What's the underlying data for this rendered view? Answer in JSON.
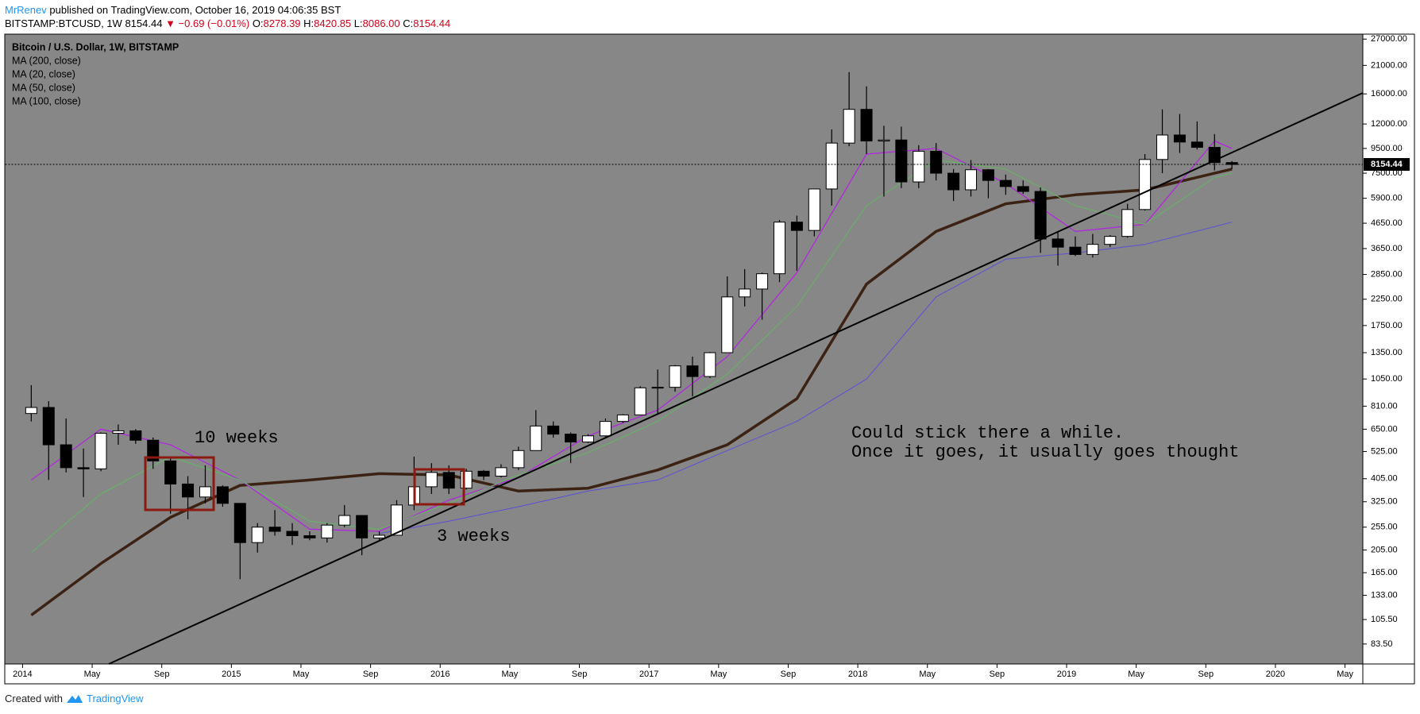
{
  "header": {
    "author": "MrRenev",
    "published": "published on TradingView.com, October 16, 2019 04:06:35 BST",
    "symbol": "BITSTAMP:BTCUSD, 1W",
    "price": "8154.44",
    "change": "▼ −0.69 (−0.01%)",
    "ohlc": [
      {
        "label": "O:",
        "value": "8278.39"
      },
      {
        "label": "H:",
        "value": "8420.85"
      },
      {
        "label": "L:",
        "value": "8086.00"
      },
      {
        "label": "C:",
        "value": "8154.44"
      }
    ]
  },
  "footer": {
    "text": "Created with",
    "brand": "TradingView"
  },
  "chart_data": {
    "type": "candlestick",
    "title": "Bitcoin / U.S. Dollar, 1W, BITSTAMP",
    "log_scale": true,
    "up_color": "#ffffff",
    "down_color": "#000000",
    "x": [
      "2014-01",
      "2014-02",
      "2014-03",
      "2014-04",
      "2014-05",
      "2014-06",
      "2014-07",
      "2014-08",
      "2014-09",
      "2014-10",
      "2014-11",
      "2014-12",
      "2015-01",
      "2015-02",
      "2015-03",
      "2015-04",
      "2015-05",
      "2015-06",
      "2015-07",
      "2015-08",
      "2015-09",
      "2015-10",
      "2015-11",
      "2015-12",
      "2016-01",
      "2016-02",
      "2016-03",
      "2016-04",
      "2016-05",
      "2016-06",
      "2016-07",
      "2016-08",
      "2016-09",
      "2016-10",
      "2016-11",
      "2016-12",
      "2017-01",
      "2017-02",
      "2017-03",
      "2017-04",
      "2017-05",
      "2017-06",
      "2017-07",
      "2017-08",
      "2017-09",
      "2017-10",
      "2017-11",
      "2017-12",
      "2018-01",
      "2018-02",
      "2018-03",
      "2018-04",
      "2018-05",
      "2018-06",
      "2018-07",
      "2018-08",
      "2018-09",
      "2018-10",
      "2018-11",
      "2018-12",
      "2019-01",
      "2019-02",
      "2019-03",
      "2019-04",
      "2019-05",
      "2019-06",
      "2019-07",
      "2019-08",
      "2019-09",
      "2019-10"
    ],
    "open": [
      755,
      800,
      560,
      450,
      445,
      625,
      640,
      585,
      480,
      385,
      340,
      375,
      320,
      220,
      255,
      245,
      235,
      230,
      260,
      285,
      230,
      236,
      315,
      375,
      430,
      370,
      435,
      415,
      450,
      530,
      670,
      620,
      575,
      610,
      700,
      745,
      965,
      970,
      1190,
      1075,
      1350,
      2300,
      2480,
      2870,
      4700,
      4340,
      6450,
      10000,
      13800,
      10200,
      10300,
      6900,
      9250,
      7500,
      6400,
      7750,
      7000,
      6600,
      6300,
      4000,
      3700,
      3450,
      3800,
      4100,
      5300,
      8550,
      10800,
      10100,
      9600,
      8300
    ],
    "high": [
      990,
      850,
      720,
      540,
      630,
      680,
      650,
      600,
      490,
      415,
      460,
      380,
      320,
      265,
      300,
      265,
      245,
      265,
      315,
      285,
      245,
      330,
      500,
      470,
      460,
      445,
      440,
      465,
      550,
      780,
      700,
      630,
      620,
      720,
      750,
      980,
      1150,
      1200,
      1300,
      1360,
      2800,
      3000,
      2900,
      4800,
      5000,
      6450,
      11400,
      19700,
      17200,
      11800,
      11700,
      9800,
      10000,
      7800,
      8500,
      7800,
      7400,
      7000,
      6550,
      4250,
      4100,
      4200,
      4150,
      5600,
      9000,
      13800,
      13200,
      12300,
      10900,
      8420.85
    ],
    "low": [
      700,
      400,
      430,
      340,
      435,
      560,
      565,
      445,
      290,
      275,
      320,
      310,
      155,
      200,
      235,
      215,
      225,
      220,
      255,
      195,
      225,
      236,
      300,
      350,
      350,
      365,
      400,
      410,
      440,
      530,
      600,
      470,
      570,
      605,
      690,
      745,
      750,
      930,
      890,
      1060,
      1350,
      2100,
      1850,
      2650,
      2950,
      4100,
      5500,
      9700,
      9000,
      6000,
      6500,
      6500,
      7000,
      5750,
      6000,
      5900,
      6100,
      6150,
      3500,
      3100,
      3400,
      3350,
      3700,
      4050,
      5250,
      7500,
      9100,
      9400,
      7700,
      7800
    ],
    "close": [
      800,
      560,
      450,
      445,
      625,
      640,
      585,
      480,
      385,
      340,
      375,
      320,
      220,
      255,
      245,
      235,
      230,
      260,
      285,
      230,
      236,
      315,
      375,
      430,
      370,
      435,
      415,
      450,
      530,
      670,
      620,
      575,
      610,
      700,
      745,
      965,
      970,
      1190,
      1075,
      1350,
      2300,
      2480,
      2870,
      4700,
      4340,
      6450,
      10000,
      13800,
      10200,
      10300,
      6900,
      9250,
      7500,
      6400,
      7750,
      7000,
      6600,
      6300,
      4000,
      3700,
      3450,
      3800,
      4100,
      5300,
      8550,
      10800,
      10100,
      9600,
      8300,
      8154.44
    ],
    "last_price": 8154.44,
    "ma_x": [
      "2014-01",
      "2014-05",
      "2014-09",
      "2015-01",
      "2015-05",
      "2015-09",
      "2016-01",
      "2016-05",
      "2016-09",
      "2017-01",
      "2017-05",
      "2017-09",
      "2018-01",
      "2018-05",
      "2018-09",
      "2019-01",
      "2019-05",
      "2019-09",
      "2019-10"
    ],
    "ma": [
      {
        "name": "MA (200, close)",
        "color": "#3b2212",
        "width": 3.5,
        "values": [
          110,
          180,
          280,
          380,
          400,
          425,
          420,
          360,
          370,
          440,
          560,
          870,
          2600,
          4300,
          5600,
          6100,
          6400,
          7500,
          7800
        ]
      },
      {
        "name": "MA (20, close)",
        "color": "#b326e0",
        "width": 1.3,
        "values": [
          400,
          650,
          560,
          400,
          250,
          245,
          330,
          410,
          610,
          780,
          1300,
          2900,
          9000,
          9500,
          6800,
          4300,
          4600,
          10200,
          9500
        ]
      },
      {
        "name": "MA (50, close)",
        "color": "#62b862",
        "width": 1,
        "values": [
          200,
          350,
          500,
          400,
          270,
          250,
          320,
          420,
          520,
          700,
          1100,
          2100,
          5500,
          8500,
          7800,
          5500,
          4600,
          7200,
          7500
        ]
      },
      {
        "name": "MA (100, close)",
        "color": "#5a4fd8",
        "width": 1,
        "values": [
          null,
          null,
          null,
          null,
          null,
          240,
          270,
          310,
          360,
          400,
          530,
          700,
          1050,
          2300,
          3300,
          3500,
          3800,
          4500,
          4700
        ]
      }
    ],
    "xlim": [
      "2013-12",
      "2020-06"
    ],
    "xticks": [
      {
        "value": "2014-01",
        "label": "2014"
      },
      {
        "value": "2014-05",
        "label": "May"
      },
      {
        "value": "2014-09",
        "label": "Sep"
      },
      {
        "value": "2015-01",
        "label": "2015"
      },
      {
        "value": "2015-05",
        "label": "May"
      },
      {
        "value": "2015-09",
        "label": "Sep"
      },
      {
        "value": "2016-01",
        "label": "2016"
      },
      {
        "value": "2016-05",
        "label": "May"
      },
      {
        "value": "2016-09",
        "label": "Sep"
      },
      {
        "value": "2017-01",
        "label": "2017"
      },
      {
        "value": "2017-05",
        "label": "May"
      },
      {
        "value": "2017-09",
        "label": "Sep"
      },
      {
        "value": "2018-01",
        "label": "2018"
      },
      {
        "value": "2018-05",
        "label": "May"
      },
      {
        "value": "2018-09",
        "label": "Sep"
      },
      {
        "value": "2019-01",
        "label": "2019"
      },
      {
        "value": "2019-05",
        "label": "May"
      },
      {
        "value": "2019-09",
        "label": "Sep"
      },
      {
        "value": "2020-01",
        "label": "2020"
      },
      {
        "value": "2020-05",
        "label": "May"
      }
    ],
    "ylim": [
      69,
      28200
    ],
    "yticks": [
      {
        "value": 83.5,
        "label": "83.50"
      },
      {
        "value": 105.5,
        "label": "105.50"
      },
      {
        "value": 133,
        "label": "133.00"
      },
      {
        "value": 165,
        "label": "165.00"
      },
      {
        "value": 205,
        "label": "205.00"
      },
      {
        "value": 255,
        "label": "255.00"
      },
      {
        "value": 325,
        "label": "325.00"
      },
      {
        "value": 405,
        "label": "405.00"
      },
      {
        "value": 525,
        "label": "525.00"
      },
      {
        "value": 650,
        "label": "650.00"
      },
      {
        "value": 810,
        "label": "810.00"
      },
      {
        "value": 1050,
        "label": "1050.00"
      },
      {
        "value": 1350,
        "label": "1350.00"
      },
      {
        "value": 1750,
        "label": "1750.00"
      },
      {
        "value": 2250,
        "label": "2250.00"
      },
      {
        "value": 2850,
        "label": "2850.00"
      },
      {
        "value": 3650,
        "label": "3650.00"
      },
      {
        "value": 4650,
        "label": "4650.00"
      },
      {
        "value": 5900,
        "label": "5900.00"
      },
      {
        "value": 7500,
        "label": "7500.00"
      },
      {
        "value": 9500,
        "label": "9500.00"
      },
      {
        "value": 12000,
        "label": "12000.00"
      },
      {
        "value": 16000,
        "label": "16000.00"
      },
      {
        "value": 21000,
        "label": "21000.00"
      },
      {
        "value": 27000,
        "label": "27000.00"
      }
    ],
    "annotations": [
      "10 weeks",
      "3 weeks",
      "Could stick there a while.",
      "Once it goes, it usually goes thought"
    ]
  }
}
